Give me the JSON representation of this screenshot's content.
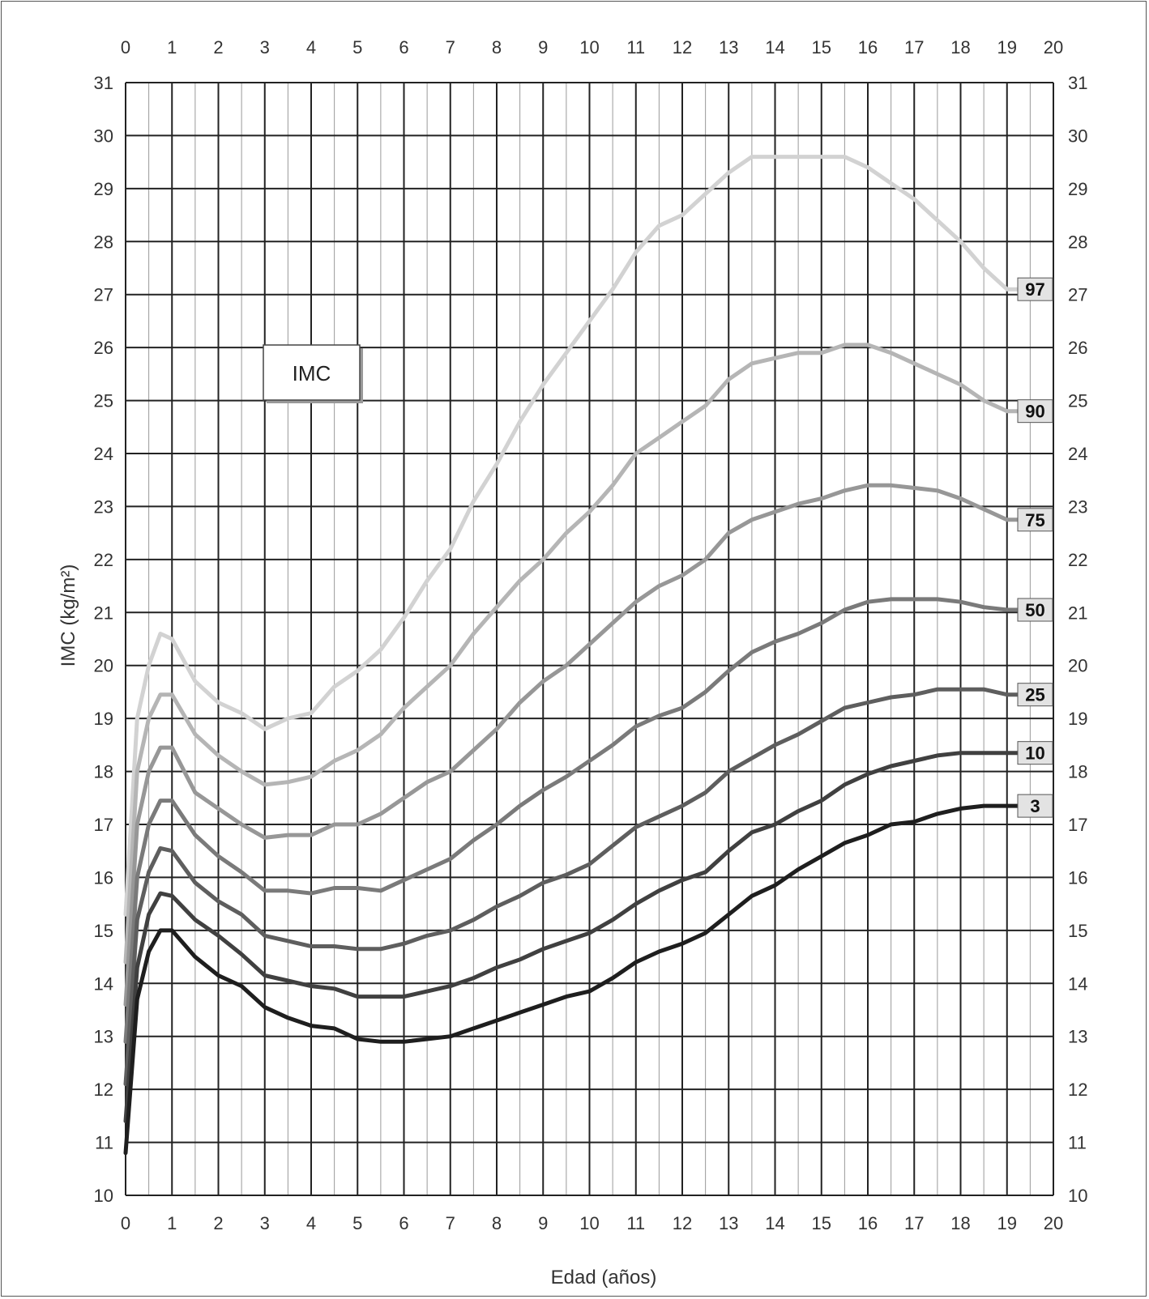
{
  "chart_data": {
    "type": "line",
    "title": "IMC",
    "xlabel": "Edad (años)",
    "ylabel": "IMC (kg/m²)",
    "xlim": [
      0,
      20
    ],
    "ylim": [
      10,
      31
    ],
    "x_ticks": [
      "0",
      "1",
      "2",
      "3",
      "4",
      "5",
      "6",
      "7",
      "8",
      "9",
      "10",
      "11",
      "12",
      "13",
      "14",
      "15",
      "16",
      "17",
      "18",
      "19",
      "20"
    ],
    "y_ticks": [
      "10",
      "11",
      "12",
      "13",
      "14",
      "15",
      "16",
      "17",
      "18",
      "19",
      "20",
      "21",
      "22",
      "23",
      "24",
      "25",
      "26",
      "27",
      "28",
      "29",
      "30",
      "31"
    ],
    "grid": true,
    "series": [
      {
        "name": "97",
        "color": "#d2d2d2",
        "points": [
          [
            0,
            15.3
          ],
          [
            0.25,
            19.0
          ],
          [
            0.5,
            20.0
          ],
          [
            0.75,
            20.6
          ],
          [
            1,
            20.5
          ],
          [
            1.5,
            19.7
          ],
          [
            2,
            19.3
          ],
          [
            2.5,
            19.1
          ],
          [
            3,
            18.8
          ],
          [
            3.5,
            19.0
          ],
          [
            4,
            19.1
          ],
          [
            4.5,
            19.6
          ],
          [
            5,
            19.9
          ],
          [
            5.5,
            20.3
          ],
          [
            6,
            20.9
          ],
          [
            6.5,
            21.6
          ],
          [
            7,
            22.2
          ],
          [
            7.5,
            23.1
          ],
          [
            8,
            23.8
          ],
          [
            8.5,
            24.6
          ],
          [
            9,
            25.3
          ],
          [
            9.5,
            25.9
          ],
          [
            10,
            26.5
          ],
          [
            10.5,
            27.1
          ],
          [
            11,
            27.8
          ],
          [
            11.5,
            28.3
          ],
          [
            12,
            28.5
          ],
          [
            12.5,
            28.9
          ],
          [
            13,
            29.3
          ],
          [
            13.5,
            29.6
          ],
          [
            14,
            29.6
          ],
          [
            14.5,
            29.6
          ],
          [
            15,
            29.6
          ],
          [
            15.5,
            29.6
          ],
          [
            16,
            29.4
          ],
          [
            16.5,
            29.1
          ],
          [
            17,
            28.8
          ],
          [
            17.5,
            28.4
          ],
          [
            18,
            28.0
          ],
          [
            18.5,
            27.5
          ],
          [
            19,
            27.1
          ],
          [
            19.3,
            27.1
          ]
        ],
        "label_value": "97"
      },
      {
        "name": "90",
        "color": "#b5b5b5",
        "points": [
          [
            0,
            14.4
          ],
          [
            0.25,
            18.0
          ],
          [
            0.5,
            19.0
          ],
          [
            0.75,
            19.45
          ],
          [
            1,
            19.45
          ],
          [
            1.5,
            18.7
          ],
          [
            2,
            18.3
          ],
          [
            2.5,
            18.0
          ],
          [
            3,
            17.75
          ],
          [
            3.5,
            17.8
          ],
          [
            4,
            17.9
          ],
          [
            4.5,
            18.2
          ],
          [
            5,
            18.4
          ],
          [
            5.5,
            18.7
          ],
          [
            6,
            19.2
          ],
          [
            6.5,
            19.6
          ],
          [
            7,
            20.0
          ],
          [
            7.5,
            20.6
          ],
          [
            8,
            21.1
          ],
          [
            8.5,
            21.6
          ],
          [
            9,
            22.0
          ],
          [
            9.5,
            22.5
          ],
          [
            10,
            22.9
          ],
          [
            10.5,
            23.4
          ],
          [
            11,
            24.0
          ],
          [
            11.5,
            24.3
          ],
          [
            12,
            24.6
          ],
          [
            12.5,
            24.9
          ],
          [
            13,
            25.4
          ],
          [
            13.5,
            25.7
          ],
          [
            14,
            25.8
          ],
          [
            14.5,
            25.9
          ],
          [
            15,
            25.9
          ],
          [
            15.5,
            26.05
          ],
          [
            16,
            26.05
          ],
          [
            16.5,
            25.9
          ],
          [
            17,
            25.7
          ],
          [
            17.5,
            25.5
          ],
          [
            18,
            25.3
          ],
          [
            18.5,
            25.0
          ],
          [
            19,
            24.8
          ],
          [
            19.3,
            24.8
          ]
        ],
        "label_value": "90"
      },
      {
        "name": "75",
        "color": "#979797",
        "points": [
          [
            0,
            13.6
          ],
          [
            0.25,
            17.0
          ],
          [
            0.5,
            18.0
          ],
          [
            0.75,
            18.45
          ],
          [
            1,
            18.45
          ],
          [
            1.5,
            17.6
          ],
          [
            2,
            17.3
          ],
          [
            2.5,
            17.0
          ],
          [
            3,
            16.75
          ],
          [
            3.5,
            16.8
          ],
          [
            4,
            16.8
          ],
          [
            4.5,
            17.0
          ],
          [
            5,
            17.0
          ],
          [
            5.5,
            17.2
          ],
          [
            6,
            17.5
          ],
          [
            6.5,
            17.8
          ],
          [
            7,
            18.0
          ],
          [
            7.5,
            18.4
          ],
          [
            8,
            18.8
          ],
          [
            8.5,
            19.3
          ],
          [
            9,
            19.7
          ],
          [
            9.5,
            20.0
          ],
          [
            10,
            20.4
          ],
          [
            10.5,
            20.8
          ],
          [
            11,
            21.2
          ],
          [
            11.5,
            21.5
          ],
          [
            12,
            21.7
          ],
          [
            12.5,
            22.0
          ],
          [
            13,
            22.5
          ],
          [
            13.5,
            22.75
          ],
          [
            14,
            22.9
          ],
          [
            14.5,
            23.05
          ],
          [
            15,
            23.15
          ],
          [
            15.5,
            23.3
          ],
          [
            16,
            23.4
          ],
          [
            16.5,
            23.4
          ],
          [
            17,
            23.35
          ],
          [
            17.5,
            23.3
          ],
          [
            18,
            23.15
          ],
          [
            18.5,
            22.95
          ],
          [
            19,
            22.75
          ],
          [
            19.3,
            22.75
          ]
        ],
        "label_value": "75"
      },
      {
        "name": "50",
        "color": "#7a7a7a",
        "points": [
          [
            0,
            12.9
          ],
          [
            0.25,
            16.0
          ],
          [
            0.5,
            17.0
          ],
          [
            0.75,
            17.45
          ],
          [
            1,
            17.45
          ],
          [
            1.5,
            16.8
          ],
          [
            2,
            16.4
          ],
          [
            2.5,
            16.1
          ],
          [
            3,
            15.75
          ],
          [
            3.5,
            15.75
          ],
          [
            4,
            15.7
          ],
          [
            4.5,
            15.8
          ],
          [
            5,
            15.8
          ],
          [
            5.5,
            15.75
          ],
          [
            6,
            15.95
          ],
          [
            6.5,
            16.15
          ],
          [
            7,
            16.35
          ],
          [
            7.5,
            16.7
          ],
          [
            8,
            17.0
          ],
          [
            8.5,
            17.35
          ],
          [
            9,
            17.65
          ],
          [
            9.5,
            17.9
          ],
          [
            10,
            18.2
          ],
          [
            10.5,
            18.5
          ],
          [
            11,
            18.85
          ],
          [
            11.5,
            19.05
          ],
          [
            12,
            19.2
          ],
          [
            12.5,
            19.5
          ],
          [
            13,
            19.9
          ],
          [
            13.5,
            20.25
          ],
          [
            14,
            20.45
          ],
          [
            14.5,
            20.6
          ],
          [
            15,
            20.8
          ],
          [
            15.5,
            21.05
          ],
          [
            16,
            21.2
          ],
          [
            16.5,
            21.25
          ],
          [
            17,
            21.25
          ],
          [
            17.5,
            21.25
          ],
          [
            18,
            21.2
          ],
          [
            18.5,
            21.1
          ],
          [
            19,
            21.05
          ],
          [
            19.3,
            21.05
          ]
        ],
        "label_value": "50"
      },
      {
        "name": "25",
        "color": "#5e5e5e",
        "points": [
          [
            0,
            12.1
          ],
          [
            0.25,
            15.2
          ],
          [
            0.5,
            16.1
          ],
          [
            0.75,
            16.55
          ],
          [
            1,
            16.5
          ],
          [
            1.5,
            15.9
          ],
          [
            2,
            15.55
          ],
          [
            2.5,
            15.3
          ],
          [
            3,
            14.9
          ],
          [
            3.5,
            14.8
          ],
          [
            4,
            14.7
          ],
          [
            4.5,
            14.7
          ],
          [
            5,
            14.65
          ],
          [
            5.5,
            14.65
          ],
          [
            6,
            14.75
          ],
          [
            6.5,
            14.9
          ],
          [
            7,
            15.0
          ],
          [
            7.5,
            15.2
          ],
          [
            8,
            15.45
          ],
          [
            8.5,
            15.65
          ],
          [
            9,
            15.9
          ],
          [
            9.5,
            16.05
          ],
          [
            10,
            16.25
          ],
          [
            10.5,
            16.6
          ],
          [
            11,
            16.95
          ],
          [
            11.5,
            17.15
          ],
          [
            12,
            17.35
          ],
          [
            12.5,
            17.6
          ],
          [
            13,
            18.0
          ],
          [
            13.5,
            18.25
          ],
          [
            14,
            18.5
          ],
          [
            14.5,
            18.7
          ],
          [
            15,
            18.95
          ],
          [
            15.5,
            19.2
          ],
          [
            16,
            19.3
          ],
          [
            16.5,
            19.4
          ],
          [
            17,
            19.45
          ],
          [
            17.5,
            19.55
          ],
          [
            18,
            19.55
          ],
          [
            18.5,
            19.55
          ],
          [
            19,
            19.45
          ],
          [
            19.3,
            19.45
          ]
        ],
        "label_value": "25"
      },
      {
        "name": "10",
        "color": "#404040",
        "points": [
          [
            0,
            11.4
          ],
          [
            0.25,
            14.3
          ],
          [
            0.5,
            15.3
          ],
          [
            0.75,
            15.7
          ],
          [
            1,
            15.65
          ],
          [
            1.5,
            15.2
          ],
          [
            2,
            14.9
          ],
          [
            2.5,
            14.55
          ],
          [
            3,
            14.15
          ],
          [
            3.5,
            14.05
          ],
          [
            4,
            13.95
          ],
          [
            4.5,
            13.9
          ],
          [
            5,
            13.75
          ],
          [
            5.5,
            13.75
          ],
          [
            6,
            13.75
          ],
          [
            6.5,
            13.85
          ],
          [
            7,
            13.95
          ],
          [
            7.5,
            14.1
          ],
          [
            8,
            14.3
          ],
          [
            8.5,
            14.45
          ],
          [
            9,
            14.65
          ],
          [
            9.5,
            14.8
          ],
          [
            10,
            14.95
          ],
          [
            10.5,
            15.2
          ],
          [
            11,
            15.5
          ],
          [
            11.5,
            15.75
          ],
          [
            12,
            15.95
          ],
          [
            12.5,
            16.1
          ],
          [
            13,
            16.5
          ],
          [
            13.5,
            16.85
          ],
          [
            14,
            17.0
          ],
          [
            14.5,
            17.25
          ],
          [
            15,
            17.45
          ],
          [
            15.5,
            17.75
          ],
          [
            16,
            17.95
          ],
          [
            16.5,
            18.1
          ],
          [
            17,
            18.2
          ],
          [
            17.5,
            18.3
          ],
          [
            18,
            18.35
          ],
          [
            18.5,
            18.35
          ],
          [
            19,
            18.35
          ],
          [
            19.3,
            18.35
          ]
        ],
        "label_value": "10"
      },
      {
        "name": "3",
        "color": "#1e1e1e",
        "points": [
          [
            0,
            10.8
          ],
          [
            0.25,
            13.7
          ],
          [
            0.5,
            14.6
          ],
          [
            0.75,
            15.0
          ],
          [
            1,
            15.0
          ],
          [
            1.5,
            14.5
          ],
          [
            2,
            14.15
          ],
          [
            2.5,
            13.95
          ],
          [
            3,
            13.55
          ],
          [
            3.5,
            13.35
          ],
          [
            4,
            13.2
          ],
          [
            4.5,
            13.15
          ],
          [
            5,
            12.95
          ],
          [
            5.5,
            12.9
          ],
          [
            6,
            12.9
          ],
          [
            6.5,
            12.95
          ],
          [
            7,
            13.0
          ],
          [
            7.5,
            13.15
          ],
          [
            8,
            13.3
          ],
          [
            8.5,
            13.45
          ],
          [
            9,
            13.6
          ],
          [
            9.5,
            13.75
          ],
          [
            10,
            13.85
          ],
          [
            10.5,
            14.1
          ],
          [
            11,
            14.4
          ],
          [
            11.5,
            14.6
          ],
          [
            12,
            14.75
          ],
          [
            12.5,
            14.95
          ],
          [
            13,
            15.3
          ],
          [
            13.5,
            15.65
          ],
          [
            14,
            15.85
          ],
          [
            14.5,
            16.15
          ],
          [
            15,
            16.4
          ],
          [
            15.5,
            16.65
          ],
          [
            16,
            16.8
          ],
          [
            16.5,
            17.0
          ],
          [
            17,
            17.05
          ],
          [
            17.5,
            17.2
          ],
          [
            18,
            17.3
          ],
          [
            18.5,
            17.35
          ],
          [
            19,
            17.35
          ],
          [
            19.3,
            17.35
          ]
        ],
        "label_value": "3"
      }
    ]
  }
}
